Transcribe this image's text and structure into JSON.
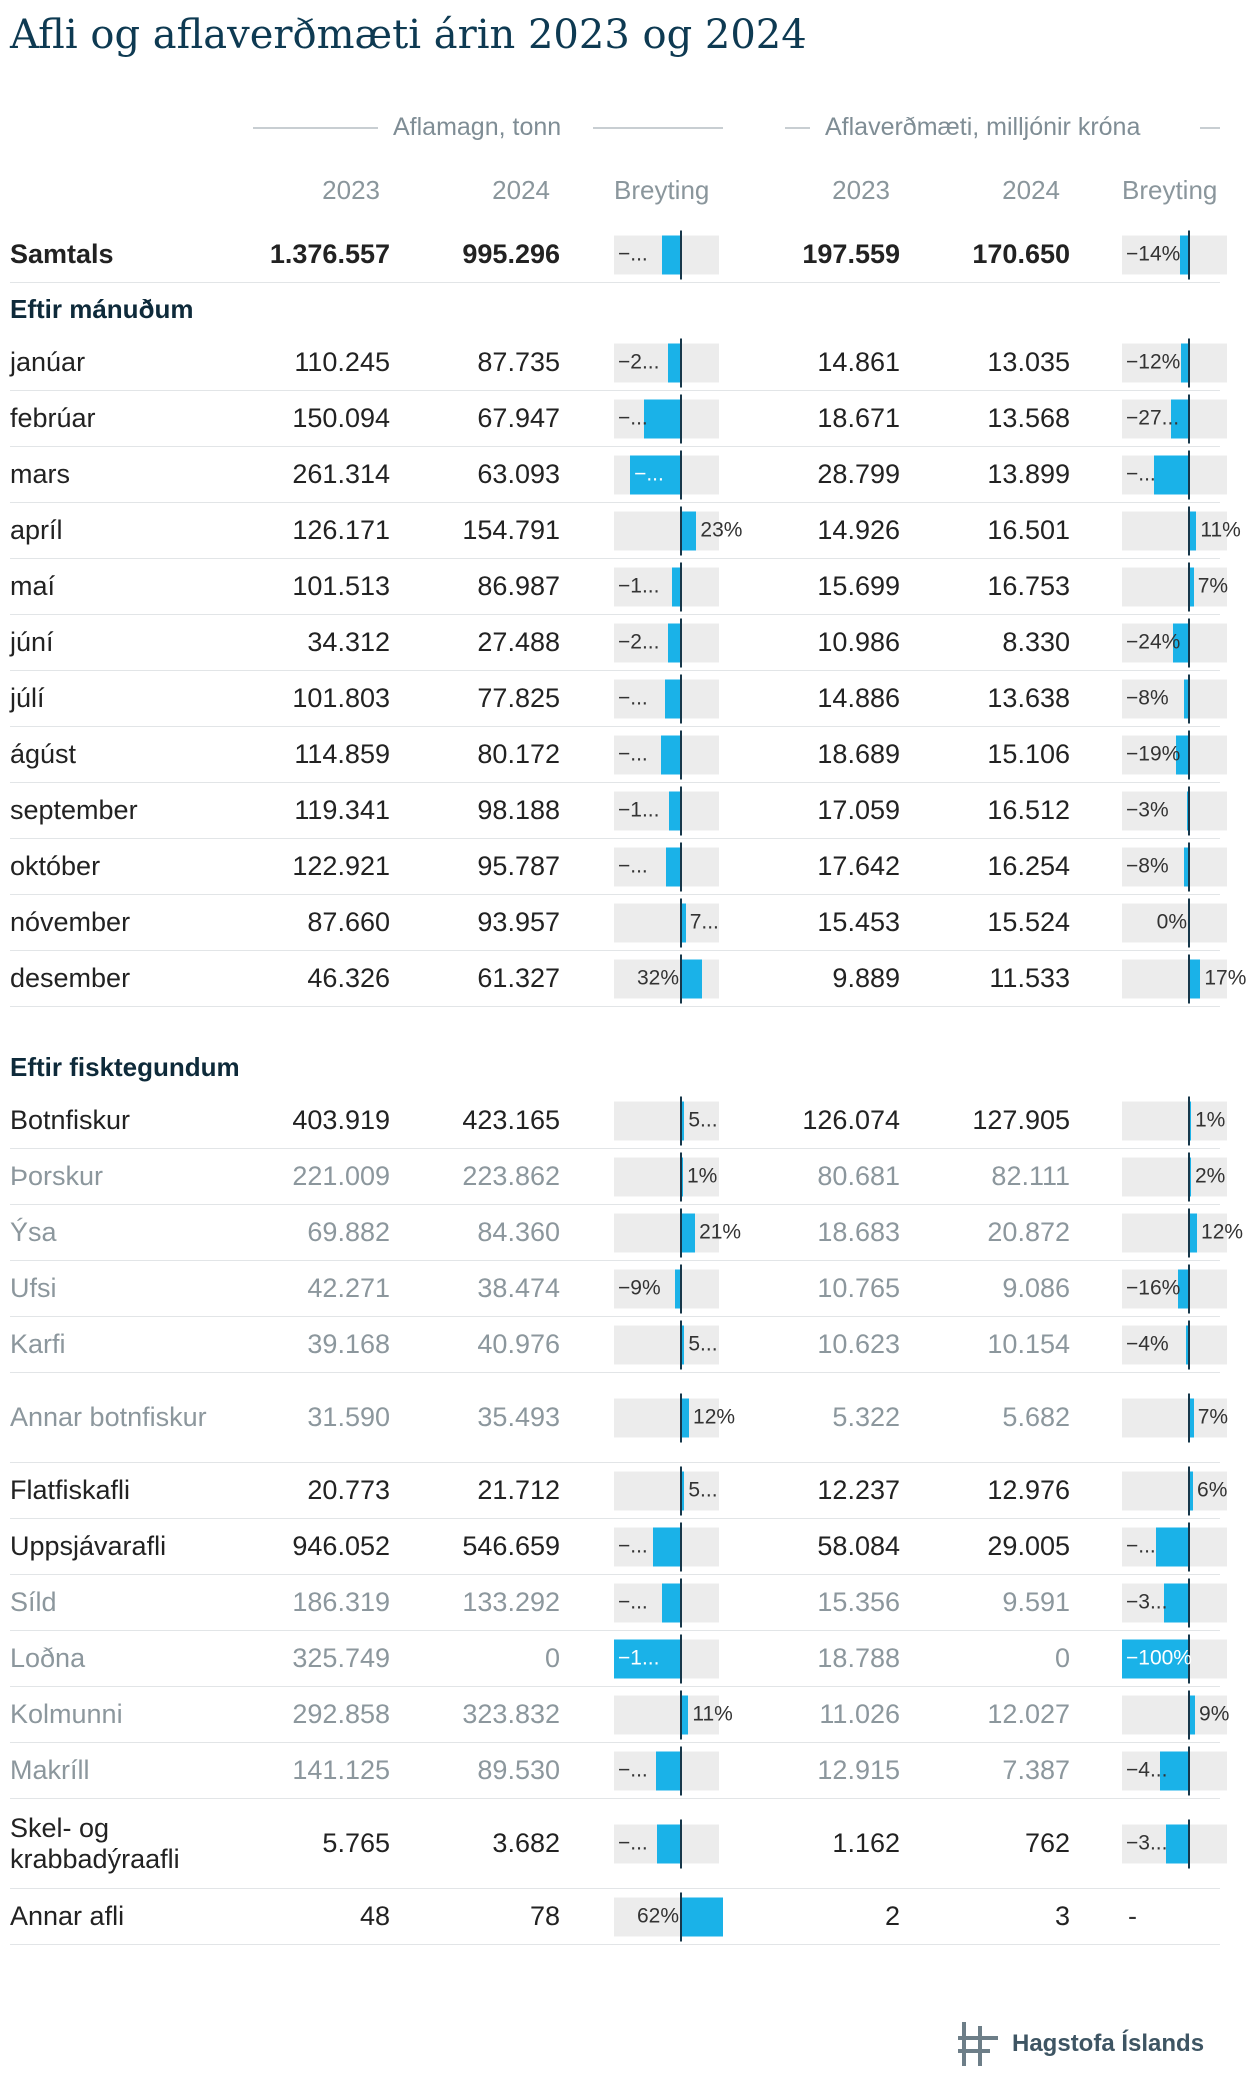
{
  "title": "Afli og aflaverðmæti árin 2023 og 2024",
  "groups": {
    "quantity": "Aflamagn, tonn",
    "value": "Aflaverðmæti, milljónir króna"
  },
  "headers": {
    "y2023": "2023",
    "y2024": "2024",
    "change": "Breyting"
  },
  "colors": {
    "bar": "#1ab2e8",
    "bar_bg": "#ececec",
    "axis": "#17374a",
    "title": "#0e3a52",
    "muted": "#8c979d"
  },
  "footer": {
    "logo_text": "Hagstofa Íslands",
    "logo_icon": "hagstofa-logo-icon"
  },
  "chart_data": {
    "type": "table",
    "columns": [
      "2023",
      "2024",
      "Breyting",
      "2023",
      "2024",
      "Breyting"
    ],
    "rows": [
      {
        "label": "Samtals",
        "kind": "total",
        "q2023": "1.376.557",
        "q2024": "995.296",
        "qChange": -28,
        "qLabel": "−...",
        "v2023": "197.559",
        "v2024": "170.650",
        "vChange": -14,
        "vLabel": "−14%"
      },
      {
        "label": "Eftir mánuðum",
        "kind": "section"
      },
      {
        "label": "janúar",
        "kind": "row",
        "q2023": "110.245",
        "q2024": "87.735",
        "qChange": -20,
        "qLabel": "−2...",
        "v2023": "14.861",
        "v2024": "13.035",
        "vChange": -12,
        "vLabel": "−12%"
      },
      {
        "label": "febrúar",
        "kind": "row",
        "q2023": "150.094",
        "q2024": "67.947",
        "qChange": -55,
        "qLabel": "−...",
        "v2023": "18.671",
        "v2024": "13.568",
        "vChange": -27,
        "vLabel": "−27..."
      },
      {
        "label": "mars",
        "kind": "row",
        "q2023": "261.314",
        "q2024": "63.093",
        "qChange": -76,
        "qLabel": "−...",
        "v2023": "28.799",
        "v2024": "13.899",
        "vChange": -52,
        "vLabel": "−..."
      },
      {
        "label": "apríl",
        "kind": "row",
        "q2023": "126.171",
        "q2024": "154.791",
        "qChange": 23,
        "qLabel": "23%",
        "v2023": "14.926",
        "v2024": "16.501",
        "vChange": 11,
        "vLabel": "11%"
      },
      {
        "label": "maí",
        "kind": "row",
        "q2023": "101.513",
        "q2024": "86.987",
        "qChange": -14,
        "qLabel": "−1...",
        "v2023": "15.699",
        "v2024": "16.753",
        "vChange": 7,
        "vLabel": "7%"
      },
      {
        "label": "júní",
        "kind": "row",
        "q2023": "34.312",
        "q2024": "27.488",
        "qChange": -20,
        "qLabel": "−2...",
        "v2023": "10.986",
        "v2024": "8.330",
        "vChange": -24,
        "vLabel": "−24%"
      },
      {
        "label": "júlí",
        "kind": "row",
        "q2023": "101.803",
        "q2024": "77.825",
        "qChange": -24,
        "qLabel": "−...",
        "v2023": "14.886",
        "v2024": "13.638",
        "vChange": -8,
        "vLabel": "−8%"
      },
      {
        "label": "ágúst",
        "kind": "row",
        "q2023": "114.859",
        "q2024": "80.172",
        "qChange": -30,
        "qLabel": "−...",
        "v2023": "18.689",
        "v2024": "15.106",
        "vChange": -19,
        "vLabel": "−19%"
      },
      {
        "label": "september",
        "kind": "row",
        "q2023": "119.341",
        "q2024": "98.188",
        "qChange": -18,
        "qLabel": "−1...",
        "v2023": "17.059",
        "v2024": "16.512",
        "vChange": -3,
        "vLabel": "−3%"
      },
      {
        "label": "október",
        "kind": "row",
        "q2023": "122.921",
        "q2024": "95.787",
        "qChange": -22,
        "qLabel": "−...",
        "v2023": "17.642",
        "v2024": "16.254",
        "vChange": -8,
        "vLabel": "−8%"
      },
      {
        "label": "nóvember",
        "kind": "row",
        "q2023": "87.660",
        "q2024": "93.957",
        "qChange": 7,
        "qLabel": "7...",
        "v2023": "15.453",
        "v2024": "15.524",
        "vChange": 0,
        "vLabel": "0%"
      },
      {
        "label": "desember",
        "kind": "row",
        "q2023": "46.326",
        "q2024": "61.327",
        "qChange": 32,
        "qLabel": "32%",
        "v2023": "9.889",
        "v2024": "11.533",
        "vChange": 17,
        "vLabel": "17%"
      },
      {
        "label": "Eftir fisktegundum",
        "kind": "section"
      },
      {
        "label": "Botnfiskur",
        "kind": "row",
        "q2023": "403.919",
        "q2024": "423.165",
        "qChange": 5,
        "qLabel": "5...",
        "v2023": "126.074",
        "v2024": "127.905",
        "vChange": 1,
        "vLabel": "1%"
      },
      {
        "label": "Þorskur",
        "kind": "sub",
        "q2023": "221.009",
        "q2024": "223.862",
        "qChange": 1,
        "qLabel": "1%",
        "v2023": "80.681",
        "v2024": "82.111",
        "vChange": 2,
        "vLabel": "2%"
      },
      {
        "label": "Ýsa",
        "kind": "sub",
        "q2023": "69.882",
        "q2024": "84.360",
        "qChange": 21,
        "qLabel": "21%",
        "v2023": "18.683",
        "v2024": "20.872",
        "vChange": 12,
        "vLabel": "12%"
      },
      {
        "label": "Ufsi",
        "kind": "sub",
        "q2023": "42.271",
        "q2024": "38.474",
        "qChange": -9,
        "qLabel": "−9%",
        "v2023": "10.765",
        "v2024": "9.086",
        "vChange": -16,
        "vLabel": "−16%"
      },
      {
        "label": "Karfi",
        "kind": "sub",
        "q2023": "39.168",
        "q2024": "40.976",
        "qChange": 5,
        "qLabel": "5...",
        "v2023": "10.623",
        "v2024": "10.154",
        "vChange": -4,
        "vLabel": "−4%"
      },
      {
        "label": "Annar botnfiskur",
        "kind": "sub",
        "tall": true,
        "q2023": "31.590",
        "q2024": "35.493",
        "qChange": 12,
        "qLabel": "12%",
        "v2023": "5.322",
        "v2024": "5.682",
        "vChange": 7,
        "vLabel": "7%"
      },
      {
        "label": "Flatfiskafli",
        "kind": "row",
        "q2023": "20.773",
        "q2024": "21.712",
        "qChange": 5,
        "qLabel": "5...",
        "v2023": "12.237",
        "v2024": "12.976",
        "vChange": 6,
        "vLabel": "6%"
      },
      {
        "label": "Uppsjávarafli",
        "kind": "row",
        "q2023": "946.052",
        "q2024": "546.659",
        "qChange": -42,
        "qLabel": "−...",
        "v2023": "58.084",
        "v2024": "29.005",
        "vChange": -50,
        "vLabel": "−..."
      },
      {
        "label": "Síld",
        "kind": "sub",
        "q2023": "186.319",
        "q2024": "133.292",
        "qChange": -28,
        "qLabel": "−...",
        "v2023": "15.356",
        "v2024": "9.591",
        "vChange": -38,
        "vLabel": "−3..."
      },
      {
        "label": "Loðna",
        "kind": "sub",
        "q2023": "325.749",
        "q2024": "0",
        "qChange": -100,
        "qLabel": "−1...",
        "v2023": "18.788",
        "v2024": "0",
        "vChange": -100,
        "vLabel": "−100%"
      },
      {
        "label": "Kolmunni",
        "kind": "sub",
        "q2023": "292.858",
        "q2024": "323.832",
        "qChange": 11,
        "qLabel": "11%",
        "v2023": "11.026",
        "v2024": "12.027",
        "vChange": 9,
        "vLabel": "9%"
      },
      {
        "label": "Makríll",
        "kind": "sub",
        "q2023": "141.125",
        "q2024": "89.530",
        "qChange": -37,
        "qLabel": "−...",
        "v2023": "12.915",
        "v2024": "7.387",
        "vChange": -43,
        "vLabel": "−4..."
      },
      {
        "label": "Skel- og krabbadýraafli",
        "kind": "row",
        "tall": true,
        "q2023": "5.765",
        "q2024": "3.682",
        "qChange": -36,
        "qLabel": "−...",
        "v2023": "1.162",
        "v2024": "762",
        "vChange": -34,
        "vLabel": "−3..."
      },
      {
        "label": "Annar afli",
        "kind": "row",
        "q2023": "48",
        "q2024": "78",
        "qChange": 62,
        "qLabel": "62%",
        "v2023": "2",
        "v2024": "3",
        "vChange": null,
        "vLabel": "-"
      }
    ]
  }
}
